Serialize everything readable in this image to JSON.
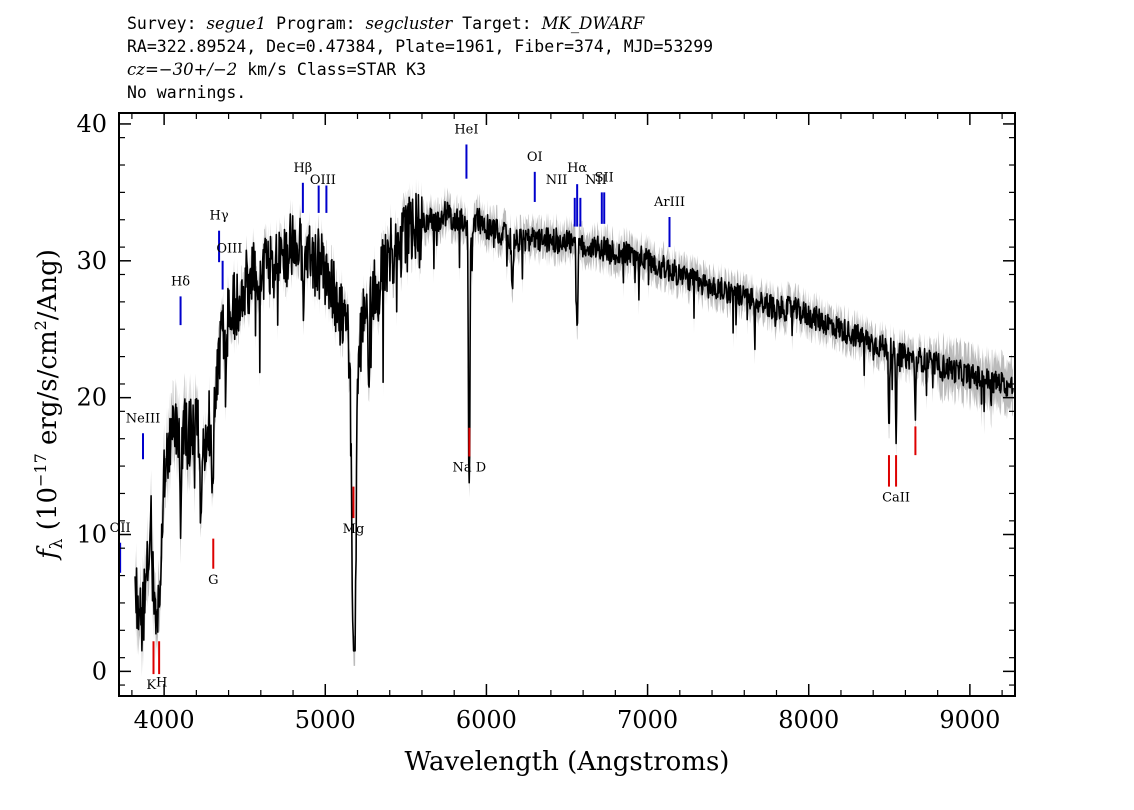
{
  "header": {
    "line1": {
      "survey_label": "Survey: ",
      "survey": "segue1",
      "program_label": " Program: ",
      "program": "segcluster",
      "target_label": " Target: ",
      "target": "MK_DWARF"
    },
    "line2": "RA=322.89524, Dec=0.47384, Plate=1961, Fiber=374, MJD=53299",
    "line3": {
      "cz_label": "cz",
      "cz_value": "=−30+/−2",
      "cz_rest": " km/s Class=STAR K3"
    },
    "line4": "No warnings."
  },
  "chart_data": {
    "type": "line",
    "xlabel": "Wavelength (Angstroms)",
    "ylabel_prefix": "f",
    "ylabel_sub": "λ",
    "ylabel_unit": " (10",
    "ylabel_exp": "−17",
    "ylabel_rest": " erg/s/cm",
    "ylabel_exp2": "2",
    "ylabel_end": "/Ang)",
    "xlim": [
      3720,
      9280
    ],
    "ylim": [
      -1.8,
      40.8
    ],
    "xticks": [
      4000,
      5000,
      6000,
      7000,
      8000,
      9000
    ],
    "yticks": [
      0,
      10,
      20,
      30,
      40
    ],
    "xtick_labels": [
      "4000",
      "5000",
      "6000",
      "7000",
      "8000",
      "9000"
    ],
    "ytick_labels": [
      "0",
      "10",
      "20",
      "30",
      "40"
    ],
    "colors": {
      "flux": "#000000",
      "error": "#bbbbbb",
      "emission": "#0000cc",
      "absorption": "#dd0000"
    },
    "continuum": [
      [
        3820,
        6
      ],
      [
        3850,
        4
      ],
      [
        3880,
        5
      ],
      [
        3900,
        8
      ],
      [
        3920,
        11
      ],
      [
        3950,
        4
      ],
      [
        3980,
        9
      ],
      [
        4000,
        15
      ],
      [
        4050,
        17
      ],
      [
        4100,
        18
      ],
      [
        4150,
        17
      ],
      [
        4200,
        18
      ],
      [
        4250,
        17
      ],
      [
        4300,
        19
      ],
      [
        4350,
        24
      ],
      [
        4400,
        26
      ],
      [
        4450,
        27
      ],
      [
        4500,
        28
      ],
      [
        4550,
        29
      ],
      [
        4600,
        29.5
      ],
      [
        4650,
        29
      ],
      [
        4700,
        30
      ],
      [
        4750,
        30.5
      ],
      [
        4800,
        31
      ],
      [
        4850,
        31.5
      ],
      [
        4900,
        30
      ],
      [
        4950,
        30
      ],
      [
        5000,
        29
      ],
      [
        5050,
        27.5
      ],
      [
        5100,
        26
      ],
      [
        5150,
        24
      ],
      [
        5180,
        20
      ],
      [
        5220,
        24
      ],
      [
        5250,
        27
      ],
      [
        5300,
        28.5
      ],
      [
        5350,
        29.5
      ],
      [
        5400,
        30.5
      ],
      [
        5450,
        31.5
      ],
      [
        5500,
        32
      ],
      [
        5550,
        32.5
      ],
      [
        5600,
        32.5
      ],
      [
        5650,
        33
      ],
      [
        5700,
        33
      ],
      [
        5750,
        33.5
      ],
      [
        5800,
        33
      ],
      [
        5850,
        33
      ],
      [
        5900,
        32.5
      ],
      [
        5950,
        33
      ],
      [
        6000,
        32.5
      ],
      [
        6100,
        32
      ],
      [
        6200,
        31.5
      ],
      [
        6300,
        31.5
      ],
      [
        6400,
        31.5
      ],
      [
        6500,
        31.5
      ],
      [
        6600,
        31
      ],
      [
        6700,
        31
      ],
      [
        6800,
        30.5
      ],
      [
        6900,
        30.5
      ],
      [
        7000,
        30
      ],
      [
        7100,
        29.5
      ],
      [
        7200,
        29
      ],
      [
        7300,
        28.5
      ],
      [
        7400,
        28
      ],
      [
        7500,
        27.8
      ],
      [
        7600,
        27.3
      ],
      [
        7700,
        27
      ],
      [
        7800,
        26.5
      ],
      [
        7900,
        26.5
      ],
      [
        8000,
        26
      ],
      [
        8100,
        25.5
      ],
      [
        8200,
        25
      ],
      [
        8300,
        24.5
      ],
      [
        8400,
        24
      ],
      [
        8500,
        23.5
      ],
      [
        8600,
        23
      ],
      [
        8700,
        22.8
      ],
      [
        8800,
        22.4
      ],
      [
        8900,
        22
      ],
      [
        9000,
        21.6
      ],
      [
        9100,
        21.3
      ],
      [
        9200,
        21
      ],
      [
        9250,
        20.8
      ]
    ],
    "absorption_features": [
      [
        3934,
        6,
        2.5
      ],
      [
        3969,
        6,
        2.5
      ],
      [
        4102,
        5,
        7
      ],
      [
        4227,
        4,
        7
      ],
      [
        4300,
        6,
        5
      ],
      [
        4383,
        4,
        5
      ],
      [
        4861,
        5,
        4
      ],
      [
        5172,
        11,
        12
      ],
      [
        5183,
        9,
        12
      ],
      [
        5270,
        6,
        5
      ],
      [
        5328,
        4,
        4
      ],
      [
        5890,
        3,
        15
      ],
      [
        5896,
        3,
        15
      ],
      [
        6162,
        5,
        4
      ],
      [
        6563,
        4,
        7
      ],
      [
        7665,
        3,
        3
      ],
      [
        8498,
        3,
        6
      ],
      [
        8542,
        4,
        6
      ],
      [
        8662,
        3,
        5
      ]
    ],
    "emission_lines": [
      {
        "label": "OII",
        "x": 3727,
        "y1": 7.2,
        "y2": 9.4,
        "lx": 3727,
        "ly": 10.2
      },
      {
        "label": "NeIII",
        "x": 3869,
        "y1": 15.5,
        "y2": 17.4,
        "lx": 3869,
        "ly": 18.2
      },
      {
        "label": "Hδ",
        "x": 4102,
        "y1": 25.3,
        "y2": 27.4,
        "lx": 4102,
        "ly": 28.2
      },
      {
        "label": "Hγ",
        "x": 4341,
        "y1": 29.9,
        "y2": 32.2,
        "lx": 4341,
        "ly": 33.0
      },
      {
        "label": "OIII",
        "x": 4363,
        "y1": 27.9,
        "y2": 30.0,
        "lx": 4405,
        "ly": 30.6
      },
      {
        "label": "Hβ",
        "x": 4861,
        "y1": 33.5,
        "y2": 35.7,
        "lx": 4861,
        "ly": 36.5
      },
      {
        "label": "OIII",
        "x": 4959,
        "y1": 33.5,
        "y2": 35.5,
        "lx": 4985,
        "ly": 35.6
      },
      {
        "label": "",
        "x": 5007,
        "y1": 33.5,
        "y2": 35.5,
        "lx": 5007,
        "ly": 35.6
      },
      {
        "label": "HeI",
        "x": 5876,
        "y1": 36.0,
        "y2": 38.5,
        "lx": 5876,
        "ly": 39.3
      },
      {
        "label": "OI",
        "x": 6300,
        "y1": 34.3,
        "y2": 36.5,
        "lx": 6300,
        "ly": 37.3
      },
      {
        "label": "NII",
        "x": 6548,
        "y1": 32.5,
        "y2": 34.6,
        "lx": 6435,
        "ly": 35.6
      },
      {
        "label": "Hα",
        "x": 6563,
        "y1": 32.5,
        "y2": 35.6,
        "lx": 6563,
        "ly": 36.5
      },
      {
        "label": "",
        "x": 6583,
        "y1": 32.5,
        "y2": 34.6,
        "lx": 6583,
        "ly": 35.6
      },
      {
        "label": "NII",
        "x": 6716,
        "y1": 32.7,
        "y2": 35.0,
        "lx": 6680,
        "ly": 35.6
      },
      {
        "label": "SII",
        "x": 6731,
        "y1": 32.7,
        "y2": 35.0,
        "lx": 6731,
        "ly": 35.8
      },
      {
        "label": "ArIII",
        "x": 7136,
        "y1": 31.0,
        "y2": 33.2,
        "lx": 7136,
        "ly": 34.0
      }
    ],
    "absorption_lines": [
      {
        "label": "K",
        "x": 3934,
        "y1": -0.2,
        "y2": 2.2,
        "lx": 3920,
        "ly": -1.3
      },
      {
        "label": "H",
        "x": 3969,
        "y1": -0.2,
        "y2": 2.2,
        "lx": 3985,
        "ly": -1.1
      },
      {
        "label": "G",
        "x": 4305,
        "y1": 7.5,
        "y2": 9.7,
        "lx": 4305,
        "ly": 6.4
      },
      {
        "label": "Mg",
        "x": 5175,
        "y1": 11.2,
        "y2": 13.5,
        "lx": 5175,
        "ly": 10.1
      },
      {
        "label": "Na D",
        "x": 5894,
        "y1": 15.7,
        "y2": 17.8,
        "lx": 5894,
        "ly": 14.6
      },
      {
        "label": "CaII",
        "x": 8498,
        "y1": 13.5,
        "y2": 15.8,
        "lx": 8542,
        "ly": 12.4
      },
      {
        "label": "",
        "x": 8542,
        "y1": 13.5,
        "y2": 15.8,
        "lx": 8542,
        "ly": 12.4
      },
      {
        "label": "",
        "x": 8662,
        "y1": 15.8,
        "y2": 17.9,
        "lx": 8662,
        "ly": 12.4
      }
    ]
  }
}
